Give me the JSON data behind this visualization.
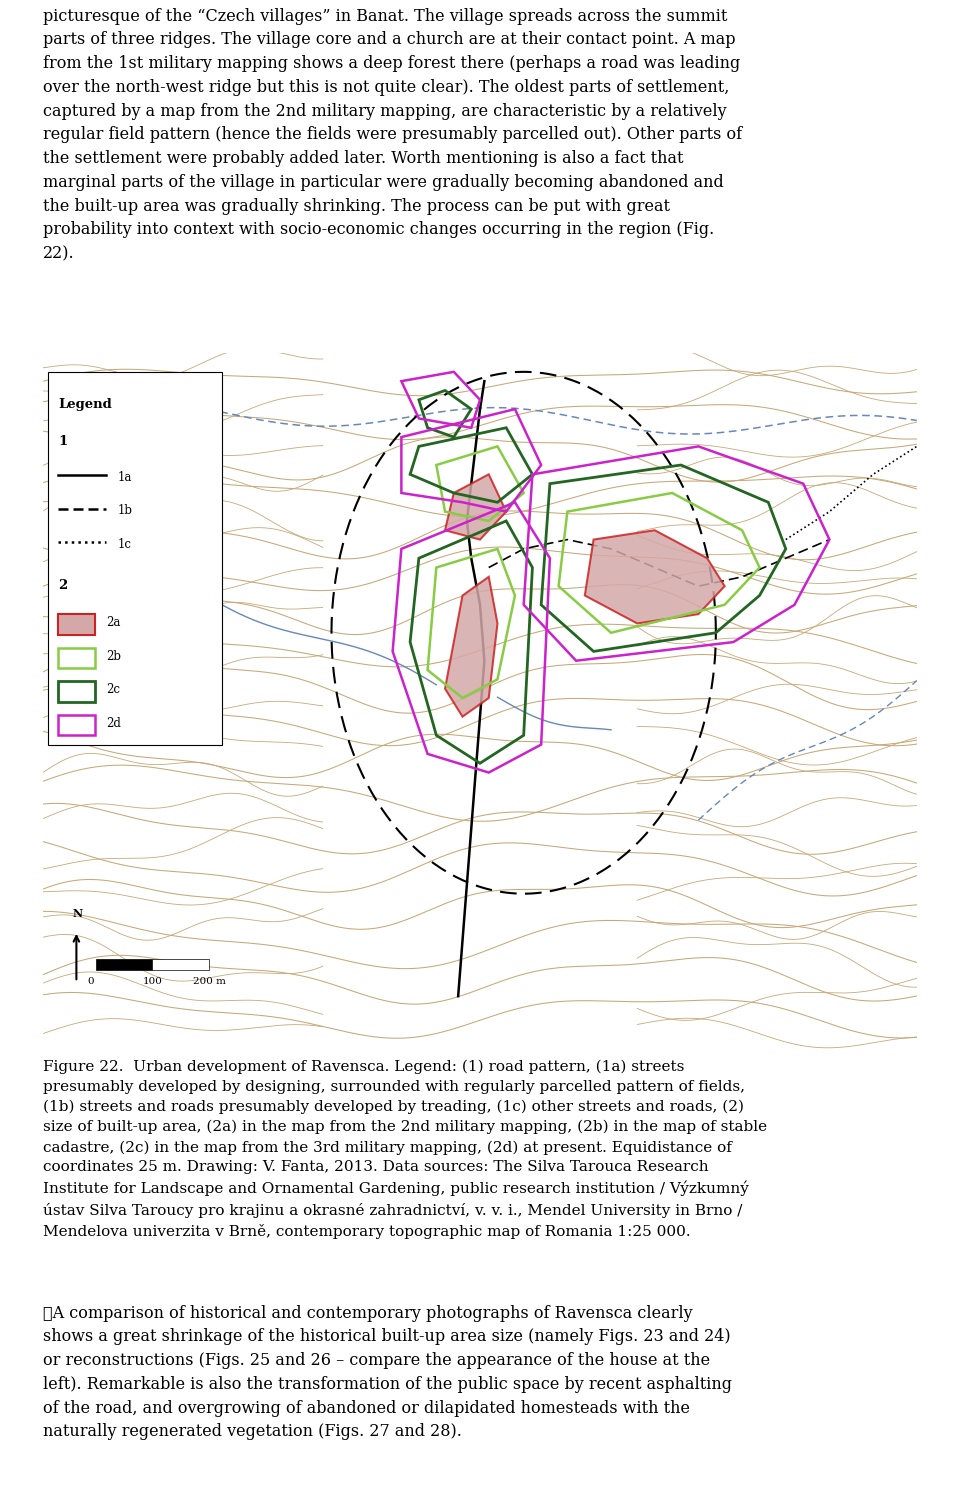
{
  "bg_color": "#ffffff",
  "text_color": "#000000",
  "font_size_body": 11.5,
  "font_size_caption": 11.0,
  "contour_color": "#c8a878",
  "map_bg_color": "#f5f0e4",
  "river_color": "#6688bb",
  "area_2a_fill": "#d4a8a8",
  "area_2a_edge": "#cc2222",
  "area_2b_edge": "#88cc44",
  "area_2c_edge": "#226622",
  "area_2d_edge": "#cc22cc",
  "top_text_lines": [
    "picturesque of the “Czech villages” in Banat. The village spreads across the summit",
    "parts of three ridges. The village core and a church are at their contact point. A map",
    "from the 1st military mapping shows a deep forest there (perhaps a road was leading",
    "over the north-west ridge but this is not quite clear). The oldest parts of settlement,",
    "captured by a map from the 2nd military mapping, are characteristic by a relatively",
    "regular field pattern (hence the fields were presumably parcelled out). Other parts of",
    "the settlement were probably added later. Worth mentioning is also a fact that",
    "marginal parts of the village in particular were gradually becoming abandoned and",
    "the built-up area was gradually shrinking. The process can be put with great",
    "probability into context with socio-economic changes occurring in the region (Fig.",
    "22)."
  ],
  "caption_lines": [
    "Figure 22.  Urban development of Ravensca. Legend: (1) road pattern, (1a) streets",
    "presumably developed by designing, surrounded with regularly parcelled pattern of fields,",
    "(1b) streets and roads presumably developed by treading, (1c) other streets and roads, (2)",
    "size of built-up area, (2a) in the map from the 2nd military mapping, (2b) in the map of stable",
    "cadastre, (2c) in the map from the 3rd military mapping, (2d) at present. Equidistance of",
    "coordinates 25 m. Drawing: V. Fanta, 2013. Data sources: The Silva Tarouca Research",
    "Institute for Landscape and Ornamental Gardening, public research institution / Výzkumný",
    "ústav Silva Taroucy pro krajinu a okrasné zahradnictví, v. v. i., Mendel University in Brno /",
    "Mendelova univerzita v Brně, contemporary topographic map of Romania 1:25 000."
  ],
  "bottom_text_lines": [
    "\tA comparison of historical and contemporary photographs of Ravensca clearly",
    "shows a great shrinkage of the historical built-up area size (namely Figs. 23 and 24)",
    "or reconstructions (Figs. 25 and 26 – compare the appearance of the house at the",
    "left). Remarkable is also the transformation of the public space by recent asphalting",
    "of the road, and overgrowing of abandoned or dilapidated homesteads with the",
    "naturally regenerated vegetation (Figs. 27 and 28)."
  ]
}
